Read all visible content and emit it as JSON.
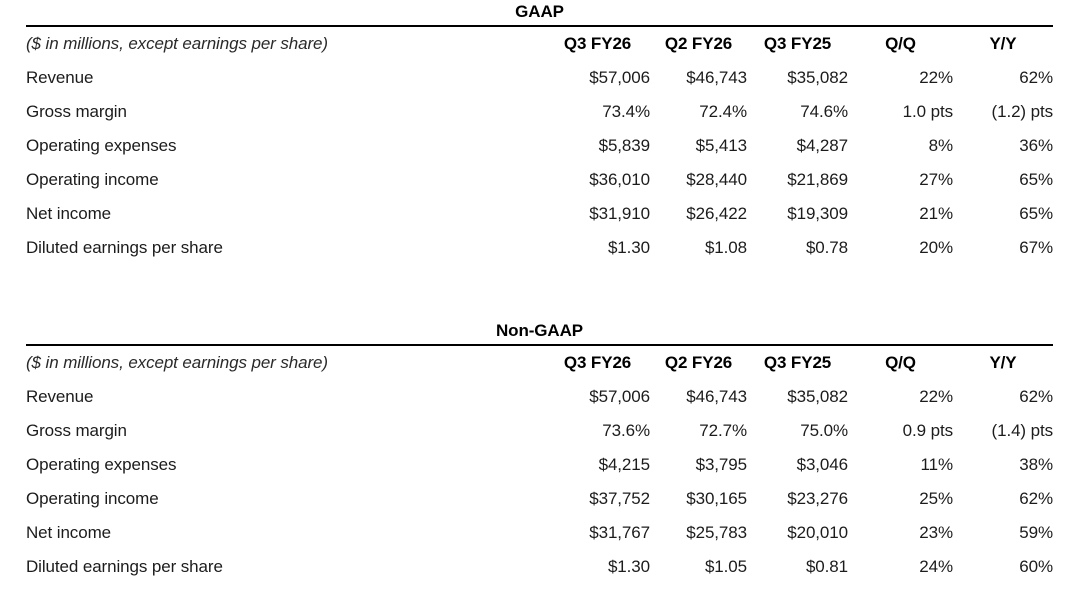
{
  "colors": {
    "background": "#ffffff",
    "text": "#1c1c1c",
    "heading": "#000000",
    "rule": "#000000"
  },
  "tables": [
    {
      "title": "GAAP",
      "note": "($ in millions, except earnings per share)",
      "columns": [
        "Q3 FY26",
        "Q2 FY26",
        "Q3 FY25",
        "Q/Q",
        "Y/Y"
      ],
      "rows": [
        {
          "label": "Revenue",
          "values": [
            "$57,006",
            "$46,743",
            "$35,082",
            "22%",
            "62%"
          ]
        },
        {
          "label": "Gross margin",
          "values": [
            "73.4%",
            "72.4%",
            "74.6%",
            "1.0 pts",
            "(1.2) pts"
          ]
        },
        {
          "label": "Operating expenses",
          "values": [
            "$5,839",
            "$5,413",
            "$4,287",
            "8%",
            "36%"
          ]
        },
        {
          "label": "Operating income",
          "values": [
            "$36,010",
            "$28,440",
            "$21,869",
            "27%",
            "65%"
          ]
        },
        {
          "label": "Net income",
          "values": [
            "$31,910",
            "$26,422",
            "$19,309",
            "21%",
            "65%"
          ]
        },
        {
          "label": "Diluted earnings per share",
          "values": [
            "$1.30",
            "$1.08",
            "$0.78",
            "20%",
            "67%"
          ]
        }
      ]
    },
    {
      "title": "Non-GAAP",
      "note": "($ in millions, except earnings per share)",
      "columns": [
        "Q3 FY26",
        "Q2 FY26",
        "Q3 FY25",
        "Q/Q",
        "Y/Y"
      ],
      "rows": [
        {
          "label": "Revenue",
          "values": [
            "$57,006",
            "$46,743",
            "$35,082",
            "22%",
            "62%"
          ]
        },
        {
          "label": "Gross margin",
          "values": [
            "73.6%",
            "72.7%",
            "75.0%",
            "0.9 pts",
            "(1.4) pts"
          ]
        },
        {
          "label": "Operating expenses",
          "values": [
            "$4,215",
            "$3,795",
            "$3,046",
            "11%",
            "38%"
          ]
        },
        {
          "label": "Operating income",
          "values": [
            "$37,752",
            "$30,165",
            "$23,276",
            "25%",
            "62%"
          ]
        },
        {
          "label": "Net income",
          "values": [
            "$31,767",
            "$25,783",
            "$20,010",
            "23%",
            "59%"
          ]
        },
        {
          "label": "Diluted earnings per share",
          "values": [
            "$1.30",
            "$1.05",
            "$0.81",
            "24%",
            "60%"
          ]
        }
      ]
    }
  ]
}
